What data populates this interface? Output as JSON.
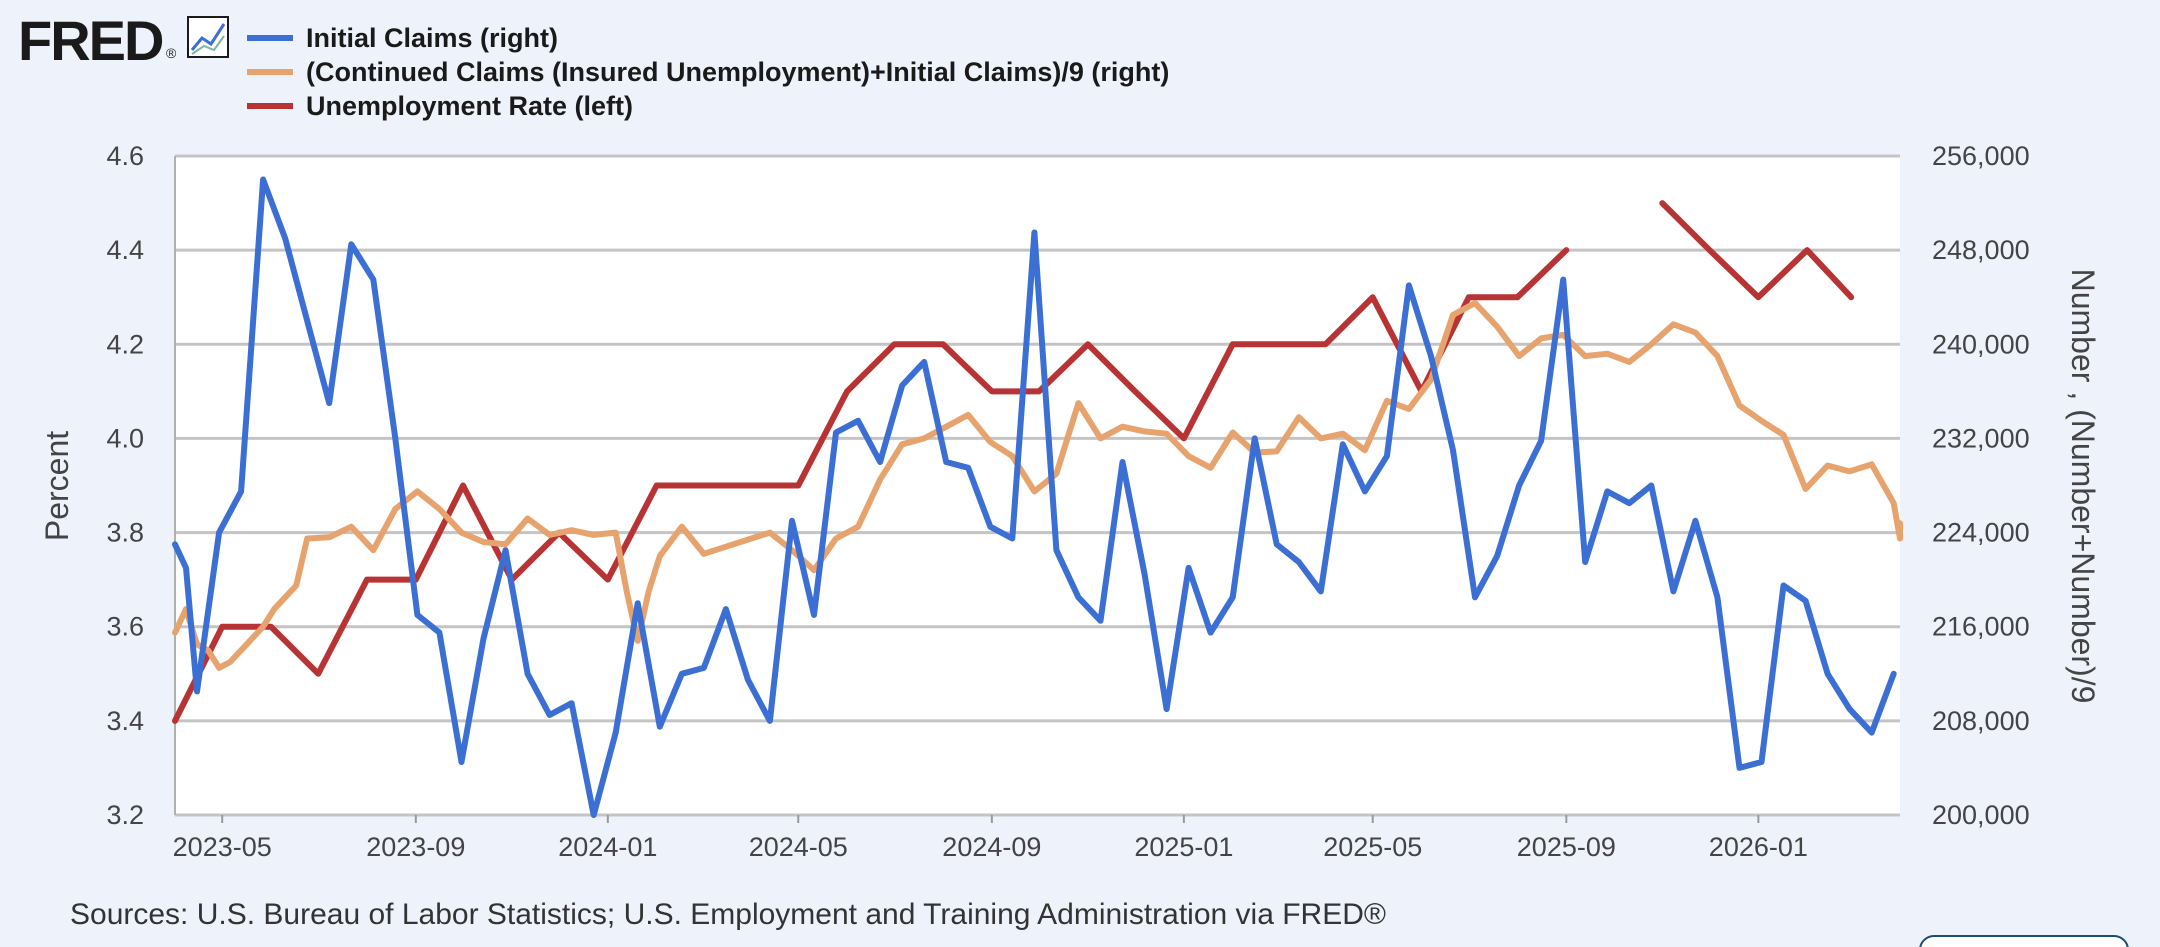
{
  "logo": {
    "text": "FRED",
    "mark": "®"
  },
  "legend": [
    {
      "label": "Initial Claims (right)",
      "color": "#3b6fd4"
    },
    {
      "label": "(Continued Claims (Insured Unemployment)+Initial Claims)/9 (right)",
      "color": "#e7a36d"
    },
    {
      "label": "Unemployment Rate (left)",
      "color": "#b83434"
    }
  ],
  "left_axis": {
    "title": "Percent",
    "ticks": [
      "3.2",
      "3.4",
      "3.6",
      "3.8",
      "4.0",
      "4.2",
      "4.4",
      "4.6"
    ]
  },
  "right_axis": {
    "title": "Number , (Number+Number)/9",
    "ticks": [
      "200,000",
      "208,000",
      "216,000",
      "224,000",
      "232,000",
      "240,000",
      "248,000",
      "256,000"
    ]
  },
  "x_axis": {
    "ticks": [
      "2023-05",
      "2023-09",
      "2024-01",
      "2024-05",
      "2024-09",
      "2025-01",
      "2025-05",
      "2025-09",
      "2026-01"
    ]
  },
  "source": "Sources: U.S. Bureau of Labor Statistics; U.S. Employment and Training Administration via FRED®",
  "chart_data": {
    "type": "line",
    "x_range": [
      "2023-04-01",
      "2026-04-01"
    ],
    "left_ylim": [
      3.2,
      4.6
    ],
    "right_ylim": [
      200000,
      256000
    ],
    "grid": true,
    "legend_position": "top-left",
    "series": [
      {
        "name": "Unemployment Rate (left)",
        "axis": "left",
        "color": "#b83434",
        "points": [
          [
            "2023-04-01",
            3.4
          ],
          [
            "2023-05-01",
            3.6
          ],
          [
            "2023-06-01",
            3.6
          ],
          [
            "2023-07-01",
            3.5
          ],
          [
            "2023-08-01",
            3.7
          ],
          [
            "2023-09-01",
            3.7
          ],
          [
            "2023-10-01",
            3.9
          ],
          [
            "2023-11-01",
            3.7
          ],
          [
            "2023-12-01",
            3.8
          ],
          [
            "2024-01-01",
            3.7
          ],
          [
            "2024-02-01",
            3.9
          ],
          [
            "2024-03-01",
            3.9
          ],
          [
            "2024-04-01",
            3.9
          ],
          [
            "2024-05-01",
            3.9
          ],
          [
            "2024-06-01",
            4.1
          ],
          [
            "2024-07-01",
            4.2
          ],
          [
            "2024-08-01",
            4.2
          ],
          [
            "2024-09-01",
            4.1
          ],
          [
            "2024-10-01",
            4.1
          ],
          [
            "2024-11-01",
            4.2
          ],
          [
            "2024-12-01",
            4.1
          ],
          [
            "2025-01-01",
            4.0
          ],
          [
            "2025-02-01",
            4.2
          ],
          [
            "2025-03-01",
            4.2
          ],
          [
            "2025-04-01",
            4.2
          ],
          [
            "2025-05-01",
            4.3
          ],
          [
            "2025-06-01",
            4.1
          ],
          [
            "2025-07-01",
            4.3
          ],
          [
            "2025-08-01",
            4.3
          ],
          [
            "2025-09-01",
            4.4
          ],
          null,
          [
            "2025-11-01",
            4.5
          ],
          [
            "2025-12-01",
            4.4
          ],
          [
            "2026-01-01",
            4.3
          ],
          [
            "2026-02-01",
            4.4
          ],
          [
            "2026-03-01",
            4.3
          ]
        ]
      },
      {
        "name": "(Continued Claims (Insured Unemployment)+Initial Claims)/9 (right)",
        "axis": "right",
        "color": "#e7a36d",
        "points": [
          [
            "2023-04-01",
            215500
          ],
          [
            "2023-04-08",
            217500
          ],
          [
            "2023-04-15",
            214500
          ],
          [
            "2023-04-22",
            214000
          ],
          [
            "2023-04-29",
            212500
          ],
          [
            "2023-05-06",
            213000
          ],
          [
            "2023-05-13",
            214000
          ],
          [
            "2023-05-20",
            215000
          ],
          [
            "2023-05-27",
            216000
          ],
          [
            "2023-06-03",
            217500
          ],
          [
            "2023-06-10",
            218500
          ],
          [
            "2023-06-17",
            219500
          ],
          [
            "2023-06-24",
            223500
          ],
          [
            "2023-07-08",
            223600
          ],
          [
            "2023-07-22",
            224500
          ],
          [
            "2023-08-05",
            222500
          ],
          [
            "2023-08-19",
            226000
          ],
          [
            "2023-09-02",
            227500
          ],
          [
            "2023-09-16",
            226000
          ],
          [
            "2023-09-30",
            224000
          ],
          [
            "2023-10-14",
            223200
          ],
          [
            "2023-10-28",
            223000
          ],
          [
            "2023-11-11",
            225200
          ],
          [
            "2023-11-25",
            223800
          ],
          [
            "2023-12-09",
            224200
          ],
          [
            "2023-12-23",
            223800
          ],
          [
            "2024-01-06",
            224000
          ],
          [
            "2024-01-13",
            219000
          ],
          [
            "2024-01-20",
            214800
          ],
          [
            "2024-01-27",
            219000
          ],
          [
            "2024-02-03",
            222000
          ],
          [
            "2024-02-17",
            224500
          ],
          [
            "2024-03-02",
            222200
          ],
          [
            "2024-03-16",
            222800
          ],
          [
            "2024-03-30",
            223400
          ],
          [
            "2024-04-13",
            224000
          ],
          [
            "2024-04-27",
            222500
          ],
          [
            "2024-05-11",
            220800
          ],
          [
            "2024-05-25",
            223500
          ],
          [
            "2024-06-08",
            224500
          ],
          [
            "2024-06-22",
            228500
          ],
          [
            "2024-07-06",
            231500
          ],
          [
            "2024-07-20",
            232000
          ],
          [
            "2024-08-03",
            233000
          ],
          [
            "2024-08-17",
            234000
          ],
          [
            "2024-08-31",
            231700
          ],
          [
            "2024-09-14",
            230500
          ],
          [
            "2024-09-28",
            227500
          ],
          [
            "2024-10-12",
            229000
          ],
          [
            "2024-10-26",
            235000
          ],
          [
            "2024-11-09",
            232000
          ],
          [
            "2024-11-23",
            233000
          ],
          [
            "2024-12-07",
            232600
          ],
          [
            "2024-12-21",
            232400
          ],
          [
            "2025-01-04",
            230500
          ],
          [
            "2025-01-18",
            229500
          ],
          [
            "2025-02-01",
            232500
          ],
          [
            "2025-02-15",
            230800
          ],
          [
            "2025-03-01",
            230900
          ],
          [
            "2025-03-15",
            233800
          ],
          [
            "2025-03-29",
            232000
          ],
          [
            "2025-04-12",
            232400
          ],
          [
            "2025-04-26",
            231000
          ],
          [
            "2025-05-10",
            235200
          ],
          [
            "2025-05-24",
            234500
          ],
          [
            "2025-06-07",
            237000
          ],
          [
            "2025-06-21",
            242500
          ],
          [
            "2025-07-05",
            243500
          ],
          [
            "2025-07-19",
            241500
          ],
          [
            "2025-08-02",
            239000
          ],
          [
            "2025-08-16",
            240500
          ],
          [
            "2025-08-30",
            240800
          ],
          [
            "2025-09-13",
            239000
          ],
          [
            "2025-09-27",
            239200
          ],
          [
            "2025-10-11",
            238500
          ],
          [
            "2025-10-25",
            240000
          ],
          [
            "2025-11-08",
            241700
          ],
          [
            "2025-11-22",
            241000
          ],
          [
            "2025-12-06",
            239000
          ],
          [
            "2025-12-20",
            234800
          ],
          [
            "2026-01-03",
            233500
          ],
          [
            "2026-01-17",
            232300
          ],
          [
            "2026-01-31",
            227700
          ],
          [
            "2026-02-14",
            229700
          ],
          [
            "2026-02-28",
            229200
          ],
          [
            "2026-03-14",
            229800
          ],
          [
            "2026-03-28",
            226500
          ],
          [
            "2026-04-11",
            223500
          ],
          [
            "2026-04-25",
            224800
          ]
        ]
      },
      {
        "name": "Initial Claims (right)",
        "axis": "right",
        "color": "#3b6fd4",
        "points": [
          [
            "2023-04-01",
            223000
          ],
          [
            "2023-04-08",
            221000
          ],
          [
            "2023-04-15",
            210500
          ],
          [
            "2023-04-29",
            224000
          ],
          [
            "2023-05-13",
            227500
          ],
          [
            "2023-05-27",
            254000
          ],
          [
            "2023-06-10",
            249000
          ],
          [
            "2023-06-24",
            242000
          ],
          [
            "2023-07-08",
            235000
          ],
          [
            "2023-07-22",
            248500
          ],
          [
            "2023-08-05",
            245500
          ],
          [
            "2023-08-19",
            232000
          ],
          [
            "2023-09-02",
            217000
          ],
          [
            "2023-09-16",
            215500
          ],
          [
            "2023-09-30",
            204500
          ],
          [
            "2023-10-14",
            215000
          ],
          [
            "2023-10-28",
            222500
          ],
          [
            "2023-11-11",
            212000
          ],
          [
            "2023-11-25",
            208500
          ],
          [
            "2023-12-09",
            209500
          ],
          [
            "2023-12-23",
            200000
          ],
          [
            "2024-01-06",
            207000
          ],
          [
            "2024-01-20",
            218000
          ],
          [
            "2024-02-03",
            207500
          ],
          [
            "2024-02-17",
            212000
          ],
          [
            "2024-03-02",
            212500
          ],
          [
            "2024-03-16",
            217500
          ],
          [
            "2024-03-30",
            211500
          ],
          [
            "2024-04-13",
            208000
          ],
          [
            "2024-04-27",
            225000
          ],
          [
            "2024-05-11",
            217000
          ],
          [
            "2024-05-25",
            232500
          ],
          [
            "2024-06-08",
            233500
          ],
          [
            "2024-06-22",
            230000
          ],
          [
            "2024-07-06",
            236500
          ],
          [
            "2024-07-20",
            238500
          ],
          [
            "2024-08-03",
            230000
          ],
          [
            "2024-08-17",
            229500
          ],
          [
            "2024-08-31",
            224500
          ],
          [
            "2024-09-14",
            223500
          ],
          [
            "2024-09-28",
            249500
          ],
          [
            "2024-10-12",
            222500
          ],
          [
            "2024-10-26",
            218500
          ],
          [
            "2024-11-09",
            216500
          ],
          [
            "2024-11-23",
            230000
          ],
          [
            "2024-12-07",
            220500
          ],
          [
            "2024-12-21",
            209000
          ],
          [
            "2025-01-04",
            221000
          ],
          [
            "2025-01-18",
            215500
          ],
          [
            "2025-02-01",
            218500
          ],
          [
            "2025-02-15",
            232000
          ],
          [
            "2025-03-01",
            223000
          ],
          [
            "2025-03-15",
            221500
          ],
          [
            "2025-03-29",
            219000
          ],
          [
            "2025-04-12",
            231500
          ],
          [
            "2025-04-26",
            227500
          ],
          [
            "2025-05-10",
            230500
          ],
          [
            "2025-05-24",
            245000
          ],
          [
            "2025-06-07",
            239000
          ],
          [
            "2025-06-21",
            231000
          ],
          [
            "2025-07-05",
            218500
          ],
          [
            "2025-07-19",
            222000
          ],
          [
            "2025-08-02",
            228000
          ],
          [
            "2025-08-16",
            231800
          ],
          [
            "2025-08-30",
            245500
          ],
          [
            "2025-09-13",
            221500
          ],
          [
            "2025-09-27",
            227500
          ],
          [
            "2025-10-11",
            226500
          ],
          [
            "2025-10-25",
            228000
          ],
          [
            "2025-11-08",
            219000
          ],
          [
            "2025-11-22",
            225000
          ],
          [
            "2025-12-06",
            218500
          ],
          [
            "2025-12-20",
            204000
          ],
          [
            "2026-01-03",
            204500
          ],
          [
            "2026-01-17",
            219500
          ],
          [
            "2026-01-31",
            218200
          ],
          [
            "2026-02-14",
            212000
          ],
          [
            "2026-02-28",
            209000
          ],
          [
            "2026-03-14",
            207000
          ],
          [
            "2026-03-28",
            212000
          ]
        ]
      }
    ]
  }
}
